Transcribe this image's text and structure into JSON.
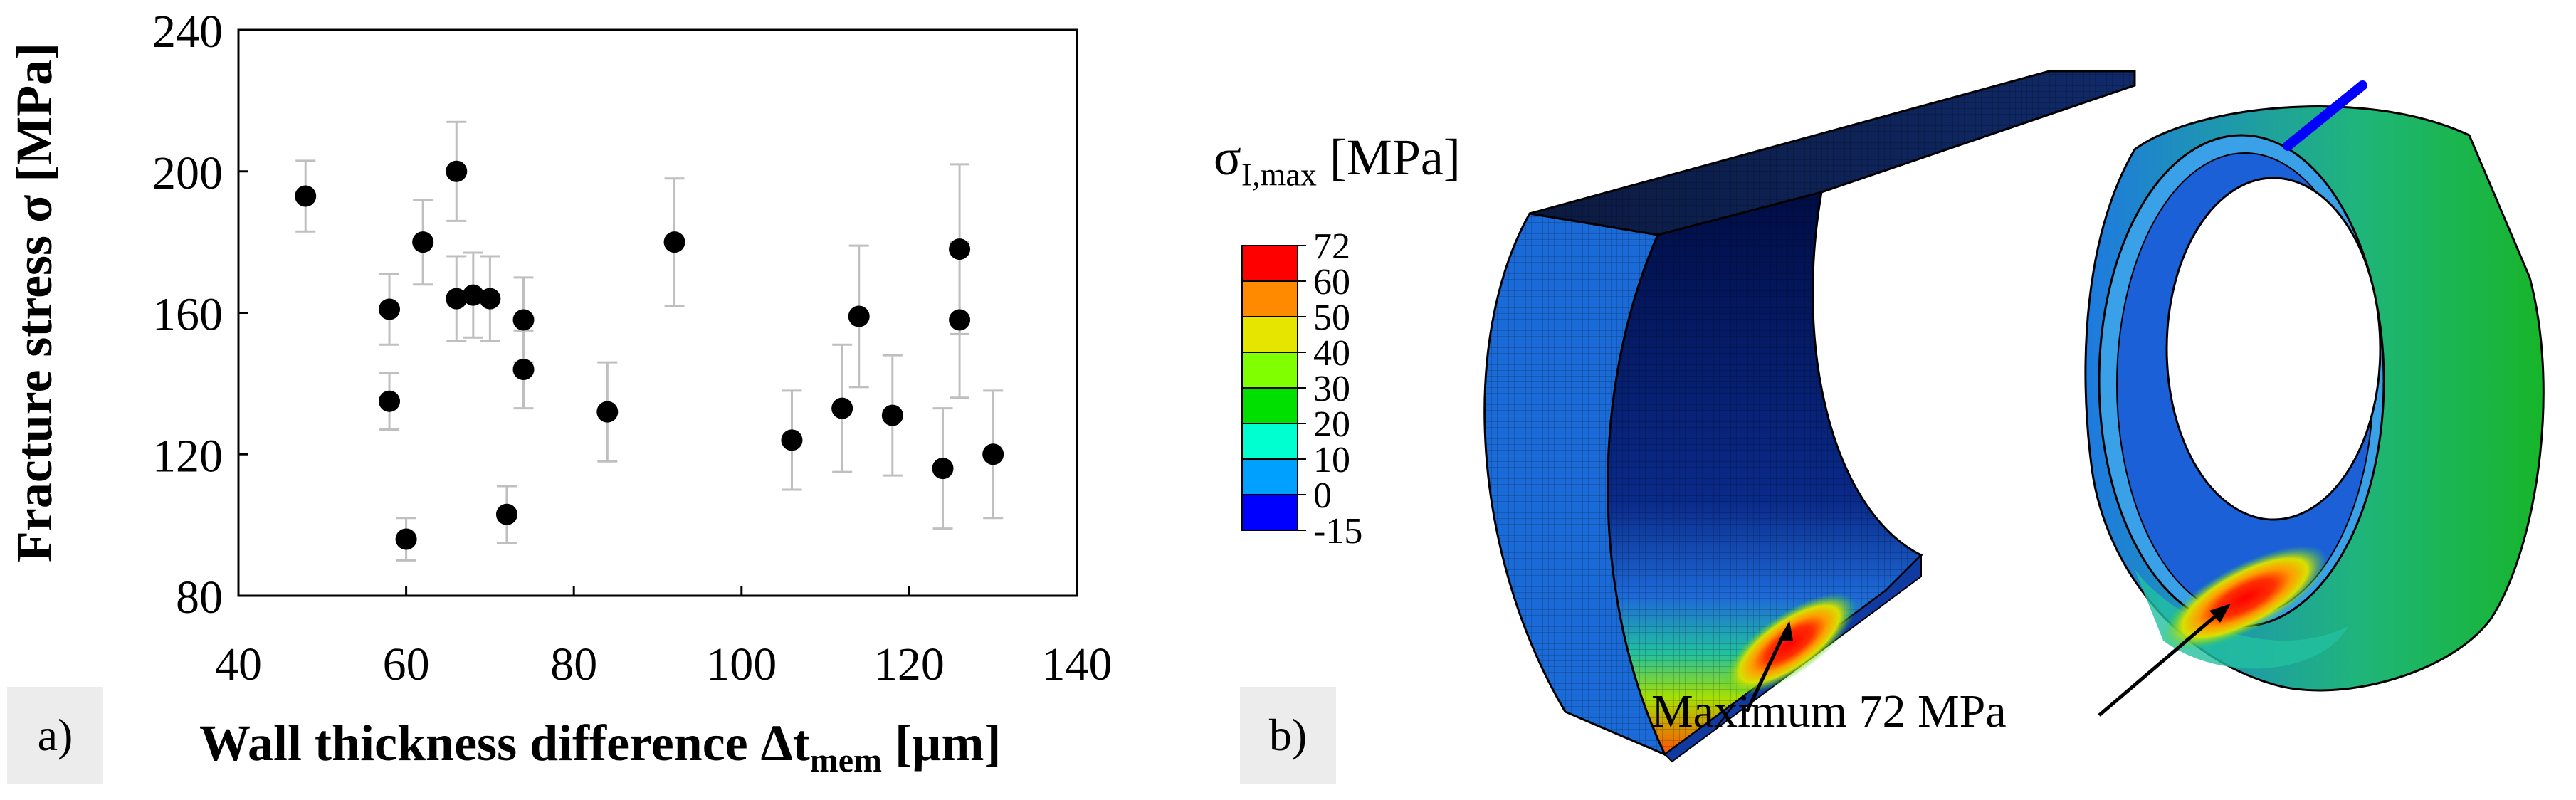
{
  "chart_data": {
    "type": "scatter",
    "xlabel": "Wall thickness difference Δt",
    "xlabel_sub": "mem",
    "xlabel_unit": " [µm]",
    "ylabel": "Fracture stress σ [MPa]",
    "xlim": [
      40,
      140
    ],
    "ylim": [
      80,
      240
    ],
    "xticks": [
      40,
      60,
      80,
      100,
      120,
      140
    ],
    "yticks": [
      80,
      120,
      160,
      200,
      240
    ],
    "points": [
      {
        "x": 48,
        "y": 193,
        "err": 10
      },
      {
        "x": 58,
        "y": 161,
        "err": 10
      },
      {
        "x": 58,
        "y": 135,
        "err": 8
      },
      {
        "x": 60,
        "y": 96,
        "err": 6
      },
      {
        "x": 62,
        "y": 180,
        "err": 12
      },
      {
        "x": 66,
        "y": 200,
        "err": 14
      },
      {
        "x": 66,
        "y": 164,
        "err": 12
      },
      {
        "x": 68,
        "y": 165,
        "err": 12
      },
      {
        "x": 70,
        "y": 164,
        "err": 12
      },
      {
        "x": 72,
        "y": 103,
        "err": 8
      },
      {
        "x": 74,
        "y": 158,
        "err": 12
      },
      {
        "x": 74,
        "y": 144,
        "err": 11
      },
      {
        "x": 84,
        "y": 132,
        "err": 14
      },
      {
        "x": 92,
        "y": 180,
        "err": 18
      },
      {
        "x": 106,
        "y": 124,
        "err": 14
      },
      {
        "x": 112,
        "y": 133,
        "err": 18
      },
      {
        "x": 114,
        "y": 159,
        "err": 20
      },
      {
        "x": 118,
        "y": 131,
        "err": 17
      },
      {
        "x": 124,
        "y": 116,
        "err": 17
      },
      {
        "x": 126,
        "y": 178,
        "err": 24
      },
      {
        "x": 126,
        "y": 158,
        "err": 22
      },
      {
        "x": 130,
        "y": 120,
        "err": 18
      }
    ],
    "marker_color": "#000000",
    "errorbar_color": "#bfbfbf",
    "grid": false
  },
  "panel_a_label": "a)",
  "panel_b_label": "b)",
  "colorbar": {
    "title": "σ",
    "title_sub": "I,max",
    "title_unit": " [MPa]",
    "ticks": [
      "72",
      "60",
      "50",
      "40",
      "30",
      "20",
      "10",
      "0",
      "-15"
    ],
    "colors": [
      "#ff0000",
      "#ff8a00",
      "#e5e500",
      "#7fff00",
      "#00e000",
      "#00ffd0",
      "#00a0ff",
      "#0000ff"
    ]
  },
  "annotation": {
    "label": "Maximum 72 MPa"
  }
}
